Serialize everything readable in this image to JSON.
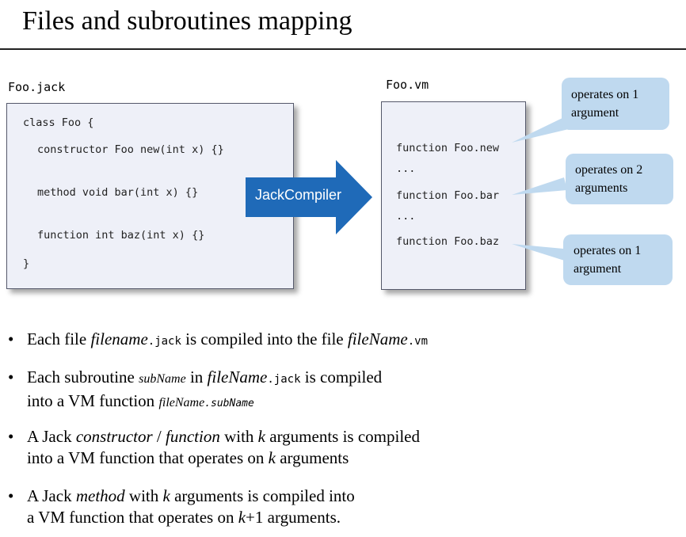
{
  "title": "Files and subroutines mapping",
  "jack_file": {
    "name": "Foo.jack",
    "lines": [
      "class Foo {",
      "constructor Foo new(int x) {}",
      "method void bar(int x) {}",
      "function int baz(int x) {}",
      "}"
    ]
  },
  "arrow_label": "JackCompiler",
  "vm_file": {
    "name": "Foo.vm",
    "lines": [
      "function Foo.new",
      "...",
      "function Foo.bar",
      "...",
      "function Foo.baz"
    ]
  },
  "callouts": [
    {
      "line1": "operates on 1",
      "line2": "argument"
    },
    {
      "line1": "operates on 2",
      "line2": "arguments"
    },
    {
      "line1": "operates on 1",
      "line2": "argument"
    }
  ],
  "bullets": {
    "b1": {
      "p1": "Each file ",
      "p2": "filename",
      "p3": ".jack",
      "p4": " is compiled into the file ",
      "p5": "fileName",
      "p6": ".vm"
    },
    "b2": {
      "p1": "Each subroutine ",
      "p2": "subName",
      "p3": " in ",
      "p4": "fileName",
      "p5": ".jack",
      "p6": " is compiled",
      "l2a": "into a VM function ",
      "l2b": "fileName",
      "l2c": ".subName"
    },
    "b3": {
      "p1": "A Jack ",
      "p2": "constructor",
      "p3": " / ",
      "p4": "function",
      "p5": " with ",
      "p6": "k",
      "p7": " arguments is compiled",
      "l2a": "into a VM function that operates on ",
      "l2b": "k",
      "l2c": " arguments"
    },
    "b4": {
      "p1": "A Jack ",
      "p2": "method",
      "p3": " with ",
      "p4": "k",
      "p5": " arguments is compiled into",
      "l2a": "a VM function that operates on ",
      "l2b": "k",
      "l2c": "+1 arguments."
    }
  },
  "bullet_char": "•",
  "colors": {
    "arrow": "#1f6ab8",
    "bubble": "#bfd9ef",
    "code_bg": "#eef0f8"
  }
}
